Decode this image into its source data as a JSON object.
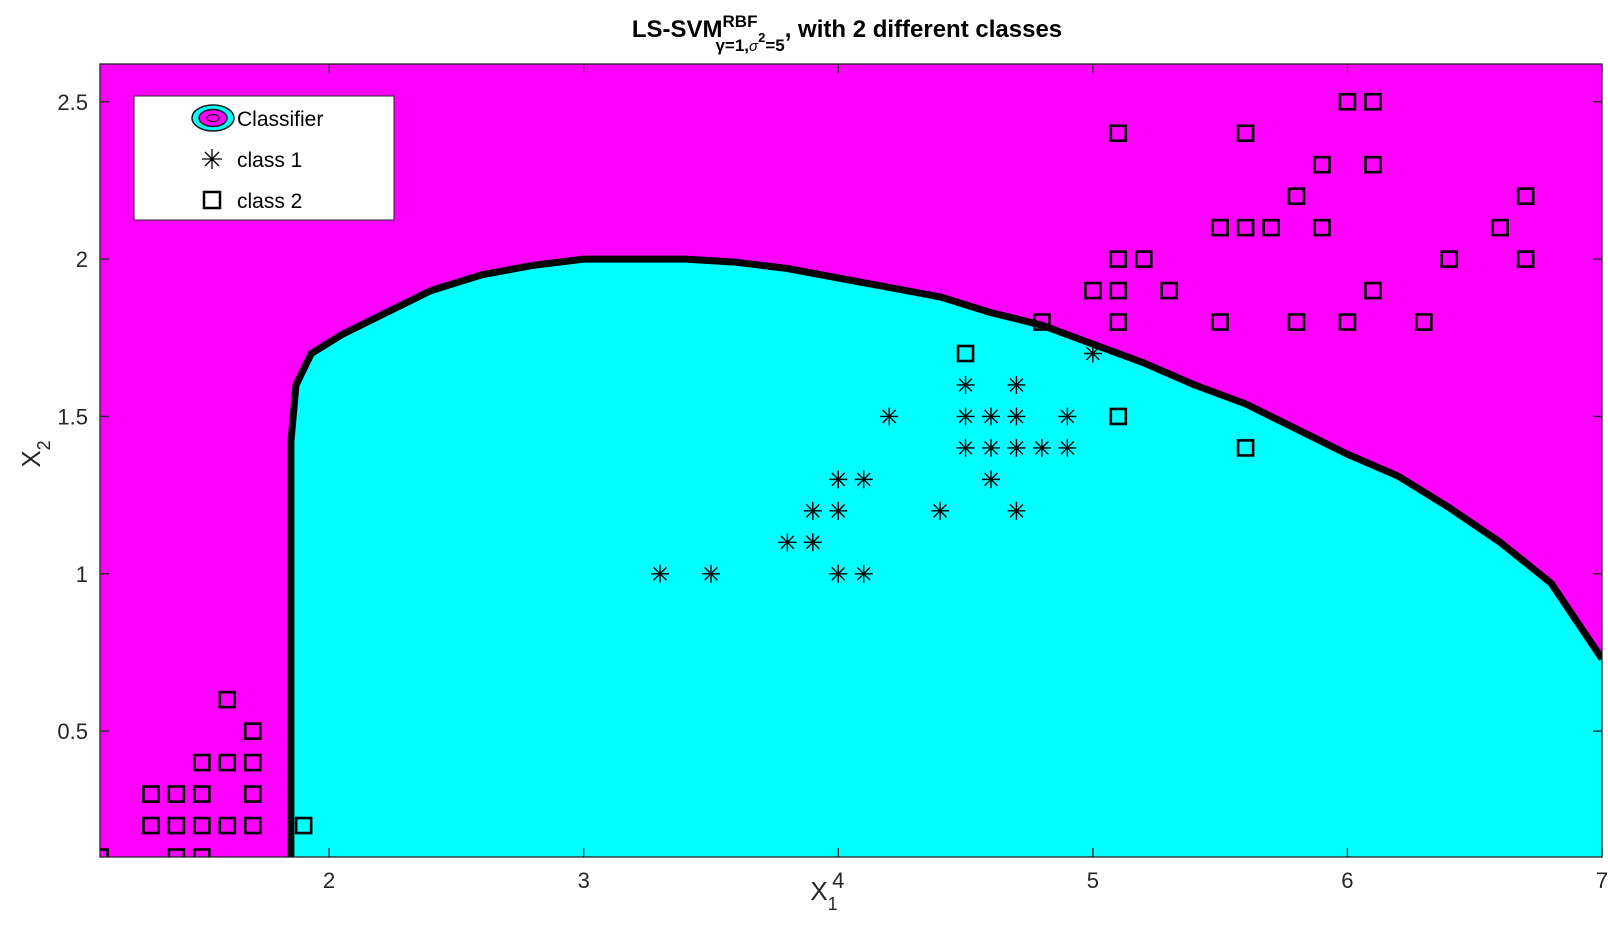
{
  "chart_data": {
    "type": "scatter",
    "title": {
      "prefix": "LS-SVM",
      "superscript": "RBF",
      "subscript_parts": [
        "γ=1,",
        "σ",
        "2",
        "=5"
      ],
      "suffix": ", with 2 different classes"
    },
    "xlabel": {
      "main": "X",
      "sub": "1"
    },
    "ylabel": {
      "main": "X",
      "sub": "2"
    },
    "xlim": [
      1.1,
      7.0
    ],
    "ylim": [
      0.1,
      2.62
    ],
    "xticks": [
      2,
      3,
      4,
      5,
      6,
      7
    ],
    "yticks": [
      0.5,
      1,
      1.5,
      2,
      2.5
    ],
    "colors": {
      "background_region": "#ff00ff",
      "classifier_region": "#00ffff",
      "boundary": "#000000",
      "markers": "#000000"
    },
    "legend": {
      "placement": "top-left",
      "entries": [
        "Classifier",
        "class 1",
        "class 2"
      ],
      "icons": [
        "classifier-contour-icon",
        "asterisk-marker-icon",
        "square-marker-icon"
      ]
    },
    "decision_boundary": [
      [
        1.85,
        0.1
      ],
      [
        1.85,
        1.42
      ],
      [
        1.87,
        1.6
      ],
      [
        1.93,
        1.7
      ],
      [
        2.05,
        1.76
      ],
      [
        2.2,
        1.82
      ],
      [
        2.4,
        1.9
      ],
      [
        2.6,
        1.95
      ],
      [
        2.8,
        1.98
      ],
      [
        3.0,
        2.0
      ],
      [
        3.2,
        2.0
      ],
      [
        3.4,
        2.0
      ],
      [
        3.6,
        1.99
      ],
      [
        3.8,
        1.97
      ],
      [
        4.0,
        1.94
      ],
      [
        4.2,
        1.91
      ],
      [
        4.4,
        1.88
      ],
      [
        4.6,
        1.83
      ],
      [
        4.8,
        1.79
      ],
      [
        5.0,
        1.73
      ],
      [
        5.2,
        1.67
      ],
      [
        5.4,
        1.6
      ],
      [
        5.6,
        1.54
      ],
      [
        5.8,
        1.46
      ],
      [
        6.0,
        1.38
      ],
      [
        6.2,
        1.31
      ],
      [
        6.4,
        1.21
      ],
      [
        6.6,
        1.1
      ],
      [
        6.8,
        0.97
      ],
      [
        7.0,
        0.73
      ]
    ],
    "series": [
      {
        "name": "class 1",
        "marker": "asterisk",
        "x": [
          3.3,
          3.5,
          3.8,
          3.9,
          3.9,
          4.0,
          4.0,
          4.0,
          4.1,
          4.1,
          4.2,
          4.4,
          4.5,
          4.5,
          4.5,
          4.6,
          4.6,
          4.6,
          4.7,
          4.7,
          4.7,
          4.7,
          4.8,
          4.9,
          4.9,
          5.0
        ],
        "y": [
          1.0,
          1.0,
          1.1,
          1.1,
          1.2,
          1.0,
          1.2,
          1.3,
          1.0,
          1.3,
          1.5,
          1.2,
          1.4,
          1.5,
          1.6,
          1.3,
          1.4,
          1.5,
          1.2,
          1.4,
          1.5,
          1.6,
          1.4,
          1.4,
          1.5,
          1.7
        ]
      },
      {
        "name": "class 2",
        "marker": "square",
        "x": [
          1.1,
          1.3,
          1.3,
          1.4,
          1.4,
          1.4,
          1.5,
          1.5,
          1.5,
          1.5,
          1.6,
          1.6,
          1.6,
          1.7,
          1.7,
          1.7,
          1.7,
          1.9,
          4.5,
          4.8,
          5.0,
          5.1,
          5.1,
          5.1,
          5.1,
          5.1,
          5.2,
          5.3,
          5.5,
          5.5,
          5.6,
          5.6,
          5.6,
          5.7,
          5.8,
          5.8,
          5.9,
          5.9,
          6.0,
          6.0,
          6.1,
          6.1,
          6.1,
          6.3,
          6.4,
          6.6,
          6.7,
          6.7
        ],
        "y": [
          0.1,
          0.2,
          0.3,
          0.1,
          0.2,
          0.3,
          0.1,
          0.2,
          0.3,
          0.4,
          0.2,
          0.4,
          0.6,
          0.2,
          0.3,
          0.4,
          0.5,
          0.2,
          1.7,
          1.8,
          1.9,
          1.5,
          1.8,
          1.9,
          2.0,
          2.4,
          2.0,
          1.9,
          1.8,
          2.1,
          1.4,
          2.1,
          2.4,
          2.1,
          1.8,
          2.2,
          2.1,
          2.3,
          1.8,
          2.5,
          1.9,
          2.3,
          2.5,
          1.8,
          2.0,
          2.1,
          2.0,
          2.2
        ]
      }
    ]
  }
}
